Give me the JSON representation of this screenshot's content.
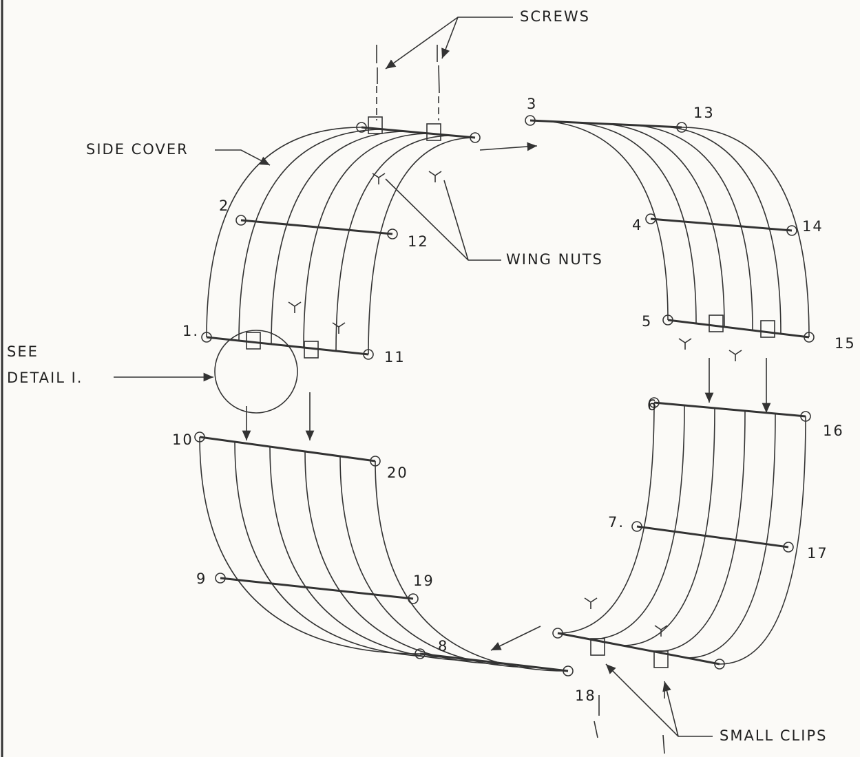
{
  "callouts": {
    "screws": "SCREWS",
    "side_cover": "SIDE COVER",
    "wing_nuts": "WING NUTS",
    "see_detail": [
      "SEE",
      "DETAIL I."
    ],
    "small_clips": "SMALL CLIPS"
  },
  "part_numbers": [
    "1.",
    "2",
    "3",
    "4",
    "5",
    "6",
    "7.",
    "8",
    "9",
    "10",
    "11",
    "12",
    "13",
    "14",
    "15",
    "16",
    "17",
    "18",
    "19",
    "20"
  ]
}
